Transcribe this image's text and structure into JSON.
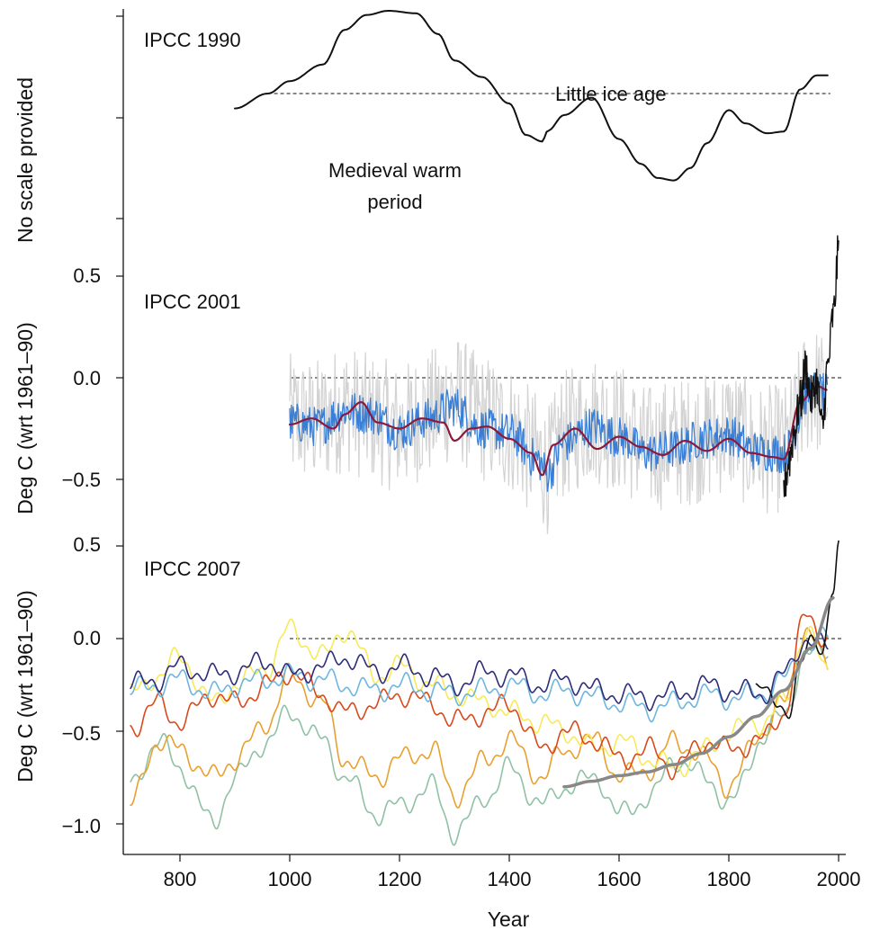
{
  "chart_data": [
    {
      "type": "line",
      "title": "IPCC 1990",
      "ylabel": "No scale provided",
      "xlim": [
        700,
        2010
      ],
      "annotations": [
        {
          "text": "Little ice age",
          "x": 1610,
          "y": 0.8
        },
        {
          "text": "Medieval warm",
          "x": 1190,
          "y": 0.1
        },
        {
          "text": "period",
          "x": 1190,
          "y": -0.22
        }
      ],
      "reference_line": {
        "y": 0.5,
        "style": "dotted"
      },
      "series": [
        {
          "color": "#111111",
          "x": [
            900,
            960,
            1000,
            1060,
            1100,
            1140,
            1180,
            1230,
            1270,
            1300,
            1350,
            1400,
            1430,
            1460,
            1470,
            1500,
            1550,
            1600,
            1640,
            1670,
            1700,
            1730,
            1760,
            1800,
            1830,
            1870,
            1900,
            1930,
            1960,
            1980
          ],
          "y": [
            0.32,
            0.5,
            0.65,
            0.85,
            1.27,
            1.45,
            1.5,
            1.47,
            1.22,
            0.9,
            0.7,
            0.38,
            0.0,
            -0.08,
            0.05,
            0.24,
            0.45,
            -0.05,
            -0.35,
            -0.52,
            -0.55,
            -0.4,
            -0.1,
            0.3,
            0.14,
            0.02,
            0.04,
            0.55,
            0.72,
            0.72
          ]
        }
      ]
    },
    {
      "type": "line",
      "title": "IPCC 2001",
      "ylabel": "Deg C (wrt 1961–90)",
      "xlim": [
        700,
        2010
      ],
      "ylim": [
        -0.95,
        0.65
      ],
      "yticks": [
        0.5,
        0.0,
        -0.5
      ],
      "yticklabels": [
        "0.5",
        "0.0",
        "−0.5"
      ],
      "reference_line": {
        "y": 0.0,
        "style": "dashed"
      },
      "series": [
        {
          "color": "#d3d3d3",
          "x": [
            1000,
            1050,
            1100,
            1150,
            1200,
            1250,
            1300,
            1350,
            1400,
            1450,
            1470,
            1500,
            1550,
            1600,
            1650,
            1700,
            1750,
            1800,
            1850,
            1900,
            1950,
            1980
          ],
          "y": [
            -0.2,
            -0.22,
            -0.15,
            -0.2,
            -0.25,
            -0.18,
            -0.1,
            -0.2,
            -0.25,
            -0.38,
            -0.45,
            -0.28,
            -0.2,
            -0.25,
            -0.35,
            -0.32,
            -0.3,
            -0.25,
            -0.35,
            -0.35,
            -0.05,
            -0.1
          ],
          "band": 0.32
        },
        {
          "color": "#3a7fd5",
          "x": [
            1000,
            1050,
            1100,
            1150,
            1200,
            1250,
            1300,
            1350,
            1400,
            1450,
            1470,
            1500,
            1550,
            1600,
            1650,
            1700,
            1750,
            1800,
            1850,
            1900,
            1950,
            1980
          ],
          "y": [
            -0.22,
            -0.24,
            -0.16,
            -0.18,
            -0.26,
            -0.2,
            -0.14,
            -0.25,
            -0.27,
            -0.4,
            -0.47,
            -0.32,
            -0.24,
            -0.29,
            -0.37,
            -0.35,
            -0.3,
            -0.28,
            -0.36,
            -0.37,
            -0.06,
            -0.08
          ],
          "band": 0.1
        },
        {
          "color": "#8b1a3a",
          "x": [
            1000,
            1040,
            1080,
            1100,
            1130,
            1160,
            1200,
            1240,
            1280,
            1300,
            1330,
            1360,
            1400,
            1440,
            1460,
            1480,
            1520,
            1560,
            1600,
            1640,
            1680,
            1720,
            1760,
            1800,
            1840,
            1880,
            1900,
            1930,
            1960,
            1980
          ],
          "y": [
            -0.23,
            -0.2,
            -0.25,
            -0.18,
            -0.12,
            -0.22,
            -0.25,
            -0.2,
            -0.22,
            -0.31,
            -0.25,
            -0.24,
            -0.3,
            -0.37,
            -0.48,
            -0.33,
            -0.25,
            -0.35,
            -0.29,
            -0.34,
            -0.38,
            -0.31,
            -0.36,
            -0.3,
            -0.37,
            -0.39,
            -0.4,
            -0.12,
            -0.04,
            -0.06
          ]
        },
        {
          "color": "#111111",
          "x": [
            1900,
            1910,
            1920,
            1930,
            1940,
            1950,
            1960,
            1970,
            1980,
            1990,
            2000
          ],
          "y": [
            -0.55,
            -0.4,
            -0.25,
            -0.12,
            0.05,
            -0.1,
            -0.02,
            -0.25,
            0.05,
            0.3,
            0.62
          ]
        }
      ]
    },
    {
      "type": "line",
      "title": "IPCC 2007",
      "ylabel": "Deg C (wrt 1961–90)",
      "xlabel": "Year",
      "xlim": [
        700,
        2010
      ],
      "ylim": [
        -1.12,
        0.52
      ],
      "xticks": [
        800,
        1000,
        1200,
        1400,
        1600,
        1800,
        2000
      ],
      "yticks": [
        0.5,
        0.0,
        -0.5,
        -1.0
      ],
      "yticklabels": [
        "0.5",
        "0.0",
        "−0.5",
        "−1.0"
      ],
      "reference_line": {
        "y": 0.0,
        "style": "dashed"
      },
      "series": [
        {
          "color": "#8fc1a5",
          "x": [
            710,
            760,
            800,
            860,
            900,
            960,
            1000,
            1060,
            1100,
            1160,
            1200,
            1260,
            1300,
            1360,
            1400,
            1460,
            1500,
            1560,
            1600,
            1660,
            1700,
            1760,
            1800,
            1860,
            1900,
            1940,
            1980
          ],
          "y": [
            -0.8,
            -0.55,
            -0.7,
            -1.0,
            -0.75,
            -0.55,
            -0.4,
            -0.55,
            -0.75,
            -0.95,
            -0.9,
            -0.8,
            -1.05,
            -0.85,
            -0.7,
            -0.9,
            -0.8,
            -0.75,
            -0.95,
            -0.85,
            -0.65,
            -0.75,
            -0.9,
            -0.55,
            -0.4,
            -0.1,
            -0.05
          ]
        },
        {
          "color": "#e8a030",
          "x": [
            710,
            760,
            800,
            860,
            900,
            960,
            1000,
            1060,
            1100,
            1160,
            1200,
            1260,
            1300,
            1360,
            1400,
            1460,
            1500,
            1560,
            1600,
            1660,
            1700,
            1760,
            1800,
            1860,
            1900,
            1940,
            1980
          ],
          "y": [
            -0.9,
            -0.55,
            -0.6,
            -0.75,
            -0.65,
            -0.45,
            -0.2,
            -0.35,
            -0.65,
            -0.75,
            -0.65,
            -0.6,
            -0.85,
            -0.65,
            -0.55,
            -0.75,
            -0.6,
            -0.55,
            -0.75,
            -0.7,
            -0.55,
            -0.65,
            -0.8,
            -0.5,
            -0.35,
            0.05,
            -0.15
          ]
        },
        {
          "color": "#f7ea5a",
          "x": [
            710,
            760,
            800,
            860,
            900,
            960,
            1000,
            1060,
            1100,
            1160,
            1200,
            1260,
            1300,
            1360,
            1400,
            1460,
            1500,
            1560,
            1600,
            1660,
            1700,
            1760,
            1800,
            1860,
            1900,
            1940,
            1980
          ],
          "y": [
            -0.3,
            -0.2,
            -0.1,
            -0.35,
            -0.25,
            -0.15,
            0.05,
            -0.1,
            0.05,
            -0.2,
            -0.15,
            -0.25,
            -0.3,
            -0.35,
            -0.4,
            -0.45,
            -0.5,
            -0.6,
            -0.55,
            -0.65,
            -0.7,
            -0.6,
            -0.5,
            -0.45,
            -0.35,
            0.05,
            -0.18
          ]
        },
        {
          "color": "#d84a1b",
          "x": [
            710,
            760,
            800,
            860,
            900,
            960,
            1000,
            1060,
            1100,
            1160,
            1200,
            1260,
            1300,
            1360,
            1400,
            1460,
            1500,
            1560,
            1600,
            1660,
            1700,
            1760,
            1800,
            1860,
            1900,
            1940,
            1980
          ],
          "y": [
            -0.48,
            -0.35,
            -0.45,
            -0.3,
            -0.35,
            -0.25,
            -0.18,
            -0.3,
            -0.4,
            -0.35,
            -0.3,
            -0.35,
            -0.45,
            -0.4,
            -0.35,
            -0.6,
            -0.5,
            -0.55,
            -0.65,
            -0.6,
            -0.7,
            -0.55,
            -0.6,
            -0.55,
            -0.4,
            0.12,
            0.0
          ]
        },
        {
          "color": "#6db6de",
          "x": [
            710,
            760,
            800,
            860,
            900,
            960,
            1000,
            1060,
            1100,
            1160,
            1200,
            1260,
            1300,
            1360,
            1400,
            1460,
            1500,
            1560,
            1600,
            1660,
            1700,
            1760,
            1800,
            1860,
            1900,
            1940,
            1980
          ],
          "y": [
            -0.28,
            -0.25,
            -0.22,
            -0.3,
            -0.25,
            -0.22,
            -0.2,
            -0.22,
            -0.25,
            -0.28,
            -0.25,
            -0.28,
            -0.3,
            -0.28,
            -0.25,
            -0.3,
            -0.28,
            -0.32,
            -0.35,
            -0.38,
            -0.35,
            -0.3,
            -0.32,
            -0.3,
            -0.22,
            -0.05,
            0.0
          ]
        },
        {
          "color": "#2e2d7a",
          "x": [
            710,
            760,
            800,
            860,
            900,
            960,
            1000,
            1060,
            1100,
            1160,
            1200,
            1260,
            1300,
            1360,
            1400,
            1460,
            1500,
            1560,
            1600,
            1660,
            1700,
            1760,
            1800,
            1860,
            1900,
            1940,
            1980
          ],
          "y": [
            -0.25,
            -0.22,
            -0.15,
            -0.2,
            -0.18,
            -0.12,
            -0.2,
            -0.15,
            -0.1,
            -0.18,
            -0.15,
            -0.2,
            -0.25,
            -0.18,
            -0.2,
            -0.25,
            -0.22,
            -0.28,
            -0.3,
            -0.32,
            -0.3,
            -0.25,
            -0.28,
            -0.3,
            -0.2,
            0.0,
            -0.05
          ]
        },
        {
          "color": "#111111",
          "x": [
            1850,
            1870,
            1890,
            1910,
            1930,
            1950,
            1970,
            1990,
            2000
          ],
          "y": [
            -0.25,
            -0.3,
            -0.35,
            -0.4,
            -0.15,
            0.0,
            -0.05,
            0.25,
            0.5
          ]
        },
        {
          "color": "#888888",
          "x": [
            1500,
            1550,
            1600,
            1650,
            1700,
            1750,
            1800,
            1850,
            1900,
            1950,
            1990
          ],
          "y": [
            -0.8,
            -0.77,
            -0.74,
            -0.72,
            -0.68,
            -0.62,
            -0.53,
            -0.42,
            -0.28,
            -0.05,
            0.22
          ]
        }
      ]
    }
  ]
}
